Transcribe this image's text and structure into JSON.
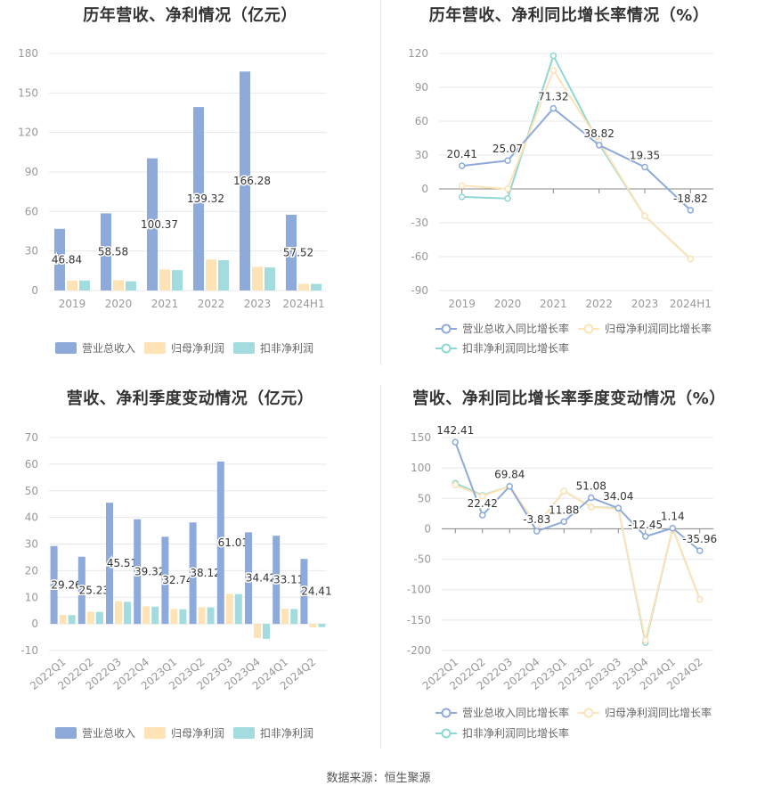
{
  "footer": "数据来源：恒生聚源",
  "colors": {
    "revenue": "#8eaadb",
    "netprofit": "#fde3b6",
    "deducted": "#a3dcde",
    "revenue_line": "#8eaadb",
    "netprofit_line": "#fde3b6",
    "deducted_line": "#8fd8d2",
    "axis_text": "#999999",
    "grid": "#e8e8e8"
  },
  "chart_data": [
    {
      "type": "bar",
      "title": "历年营收、净利情况（亿元）",
      "categories": [
        "2019",
        "2020",
        "2021",
        "2022",
        "2023",
        "2024H1"
      ],
      "ylim": [
        0,
        180
      ],
      "yticks": [
        0,
        30,
        60,
        90,
        120,
        150,
        180
      ],
      "legend_position": "bottom",
      "series": [
        {
          "name": "营业总收入",
          "values": [
            46.84,
            58.58,
            100.37,
            139.32,
            166.28,
            57.52
          ],
          "labels": [
            "46.84",
            "58.58",
            "100.37",
            "139.32",
            "166.28",
            "57.52"
          ]
        },
        {
          "name": "归母净利润",
          "values": [
            7.5,
            7.8,
            16.0,
            23.5,
            18.0,
            5.0
          ]
        },
        {
          "name": "扣非净利润",
          "values": [
            7.6,
            7.0,
            15.5,
            23.0,
            17.5,
            5.0
          ]
        }
      ]
    },
    {
      "type": "line",
      "title": "历年营收、净利同比增长率情况（%）",
      "categories": [
        "2019",
        "2020",
        "2021",
        "2022",
        "2023",
        "2024H1"
      ],
      "ylim": [
        -90,
        120
      ],
      "yticks": [
        -90,
        -60,
        -30,
        0,
        30,
        60,
        90,
        120
      ],
      "legend_position": "bottom",
      "series": [
        {
          "name": "营业总收入同比增长率",
          "values": [
            20.41,
            25.07,
            71.32,
            38.82,
            19.35,
            -18.82
          ],
          "labels": [
            "20.41",
            "25.07",
            "71.32",
            "38.82",
            "19.35",
            "-18.82"
          ]
        },
        {
          "name": "归母净利润同比增长率",
          "values": [
            3.0,
            0.0,
            105.0,
            42.0,
            -24.0,
            -62.0
          ]
        },
        {
          "name": "扣非净利润同比增长率",
          "values": [
            -7.0,
            -8.5,
            118.0,
            40.0,
            -24.0,
            -62.0
          ]
        }
      ]
    },
    {
      "type": "bar",
      "title": "营收、净利季度变动情况（亿元）",
      "categories": [
        "2022Q1",
        "2022Q2",
        "2022Q3",
        "2022Q4",
        "2023Q1",
        "2023Q2",
        "2023Q3",
        "2023Q4",
        "2024Q1",
        "2024Q2"
      ],
      "ylim": [
        -10,
        70
      ],
      "yticks": [
        -10,
        0,
        10,
        20,
        30,
        40,
        50,
        60,
        70
      ],
      "legend_position": "bottom",
      "series": [
        {
          "name": "营业总收入",
          "values": [
            29.26,
            25.23,
            45.51,
            39.32,
            32.74,
            38.12,
            61.01,
            34.42,
            33.11,
            24.41
          ],
          "labels": [
            "29.26",
            "25.23",
            "45.51",
            "39.32",
            "32.74",
            "38.12",
            "61.01",
            "34.42",
            "33.11",
            "24.41"
          ]
        },
        {
          "name": "归母净利润",
          "values": [
            3.4,
            4.6,
            8.5,
            6.6,
            5.6,
            6.3,
            11.3,
            -5.3,
            5.7,
            -1.3
          ]
        },
        {
          "name": "扣非净利润",
          "values": [
            3.3,
            4.5,
            8.3,
            6.5,
            5.5,
            6.2,
            11.2,
            -5.6,
            5.6,
            -1.2
          ]
        }
      ]
    },
    {
      "type": "line",
      "title": "营收、净利同比增长率季度变动情况（%）",
      "categories": [
        "2022Q1",
        "2022Q2",
        "2022Q3",
        "2022Q4",
        "2023Q1",
        "2023Q2",
        "2023Q3",
        "2023Q4",
        "2024Q1",
        "2024Q2"
      ],
      "ylim": [
        -200,
        150
      ],
      "yticks": [
        -200,
        -150,
        -100,
        -50,
        0,
        50,
        100,
        150
      ],
      "legend_position": "bottom",
      "series": [
        {
          "name": "营业总收入同比增长率",
          "values": [
            142.41,
            22.42,
            69.84,
            -3.83,
            11.88,
            51.08,
            34.04,
            -12.45,
            1.14,
            -35.96
          ],
          "labels": [
            "142.41",
            "22.42",
            "69.84",
            "-3.83",
            "11.88",
            "51.08",
            "34.04",
            "-12.45",
            "1.14",
            "-35.96"
          ]
        },
        {
          "name": "归母净利润同比增长率",
          "values": [
            72.0,
            54.0,
            70.0,
            5.0,
            62.0,
            36.0,
            33.0,
            -183.0,
            1.0,
            -116.0
          ]
        },
        {
          "name": "扣非净利润同比增长率",
          "values": [
            75.0,
            55.0,
            70.0,
            5.0,
            62.0,
            36.0,
            34.0,
            -187.0,
            1.0,
            -116.0
          ]
        }
      ]
    }
  ]
}
